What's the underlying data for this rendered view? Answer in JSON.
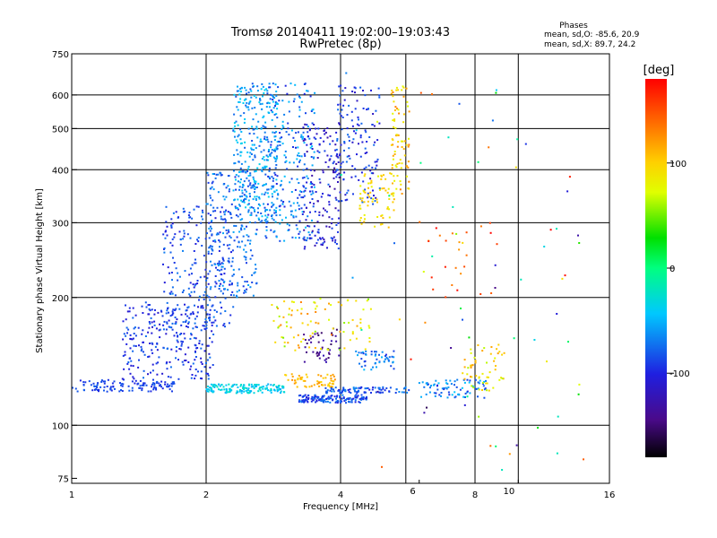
{
  "chart_data": {
    "type": "scatter",
    "title": "Tromsø 20140411 19:02:00–19:03:43",
    "subtitle": "RwPretec (8p)",
    "stats": {
      "heading": "Phases",
      "line1": "mean, sd,O: -85.6, 20.9",
      "line2": "mean, sd,X:  89.7, 24.2"
    },
    "xlabel": "Frequency [MHz]",
    "ylabel": "Stationary phase Virtual Height [km]",
    "x_scale": "log2",
    "y_scale": "log",
    "xlim": [
      1,
      16
    ],
    "ylim": [
      73,
      750
    ],
    "x_ticks": [
      1,
      2,
      4,
      8,
      16
    ],
    "x_tick_labels": [
      "1",
      "2",
      "4",
      "8",
      "16"
    ],
    "x_minor_ticks": [
      6,
      10
    ],
    "x_minor_tick_labels": [
      "6",
      "10"
    ],
    "x_grid": [
      2,
      4,
      5.6,
      8,
      10
    ],
    "y_ticks": [
      75,
      100,
      200,
      300,
      400,
      500,
      600,
      750
    ],
    "y_tick_labels": [
      "75",
      "100",
      "200",
      "300",
      "400",
      "500",
      "600",
      "750"
    ],
    "y_grid": [
      100,
      200,
      300,
      400,
      500,
      600
    ],
    "grid": true,
    "colorbar": {
      "label": "[deg]",
      "range": [
        -180,
        180
      ],
      "ticks": [
        100,
        0,
        -100
      ],
      "tick_labels": [
        "100",
        "0",
        "-100"
      ],
      "colormap": "rainbow"
    },
    "point_clusters": [
      {
        "x": [
          1.0,
          1.7
        ],
        "y": [
          120,
          128
        ],
        "phase": [
          -110,
          -90
        ],
        "n": 120
      },
      {
        "x": [
          1.3,
          2.1
        ],
        "y": [
          128,
          195
        ],
        "phase": [
          -120,
          -85
        ],
        "n": 260
      },
      {
        "x": [
          1.6,
          2.3
        ],
        "y": [
          170,
          330
        ],
        "phase": [
          -115,
          -80
        ],
        "n": 240
      },
      {
        "x": [
          2.0,
          2.6
        ],
        "y": [
          200,
          400
        ],
        "phase": [
          -105,
          -70
        ],
        "n": 220
      },
      {
        "x": [
          2.3,
          2.9
        ],
        "y": [
          300,
          640
        ],
        "phase": [
          -95,
          -50
        ],
        "n": 320
      },
      {
        "x": [
          2.7,
          3.5
        ],
        "y": [
          270,
          640
        ],
        "phase": [
          -110,
          -60
        ],
        "n": 240
      },
      {
        "x": [
          3.3,
          4.0
        ],
        "y": [
          260,
          520
        ],
        "phase": [
          -140,
          -90
        ],
        "n": 160
      },
      {
        "x": [
          3.9,
          4.9
        ],
        "y": [
          330,
          640
        ],
        "phase": [
          -125,
          -85
        ],
        "n": 140
      },
      {
        "x": [
          4.4,
          5.3
        ],
        "y": [
          290,
          400
        ],
        "phase": [
          75,
          110
        ],
        "n": 70
      },
      {
        "x": [
          5.2,
          5.7
        ],
        "y": [
          350,
          630
        ],
        "phase": [
          70,
          130
        ],
        "n": 80
      },
      {
        "x": [
          2.0,
          3.0
        ],
        "y": [
          119,
          125
        ],
        "phase": [
          -70,
          -30
        ],
        "n": 150
      },
      {
        "x": [
          3.0,
          3.9
        ],
        "y": [
          123,
          132
        ],
        "phase": [
          95,
          125
        ],
        "n": 60
      },
      {
        "x": [
          3.2,
          4.6
        ],
        "y": [
          113,
          118
        ],
        "phase": [
          -115,
          -80
        ],
        "n": 140
      },
      {
        "x": [
          3.7,
          5.7
        ],
        "y": [
          119,
          123
        ],
        "phase": [
          -110,
          -75
        ],
        "n": 90
      },
      {
        "x": [
          3.3,
          4.0
        ],
        "y": [
          140,
          170
        ],
        "phase": [
          -160,
          -130
        ],
        "n": 45
      },
      {
        "x": [
          2.8,
          4.7
        ],
        "y": [
          150,
          200
        ],
        "phase": [
          50,
          130
        ],
        "n": 90
      },
      {
        "x": [
          4.3,
          5.5
        ],
        "y": [
          135,
          150
        ],
        "phase": [
          -110,
          -60
        ],
        "n": 50
      },
      {
        "x": [
          6.0,
          8.5
        ],
        "y": [
          116,
          128
        ],
        "phase": [
          -110,
          -60
        ],
        "n": 80
      },
      {
        "x": [
          7.5,
          9.3
        ],
        "y": [
          120,
          155
        ],
        "phase": [
          60,
          120
        ],
        "n": 55
      },
      {
        "x": [
          6.2,
          9.0
        ],
        "y": [
          200,
          300
        ],
        "phase": [
          120,
          180
        ],
        "n": 25
      },
      {
        "x": [
          4.0,
          14.0
        ],
        "y": [
          78,
          700
        ],
        "phase": [
          -180,
          180
        ],
        "n": 70
      }
    ]
  }
}
